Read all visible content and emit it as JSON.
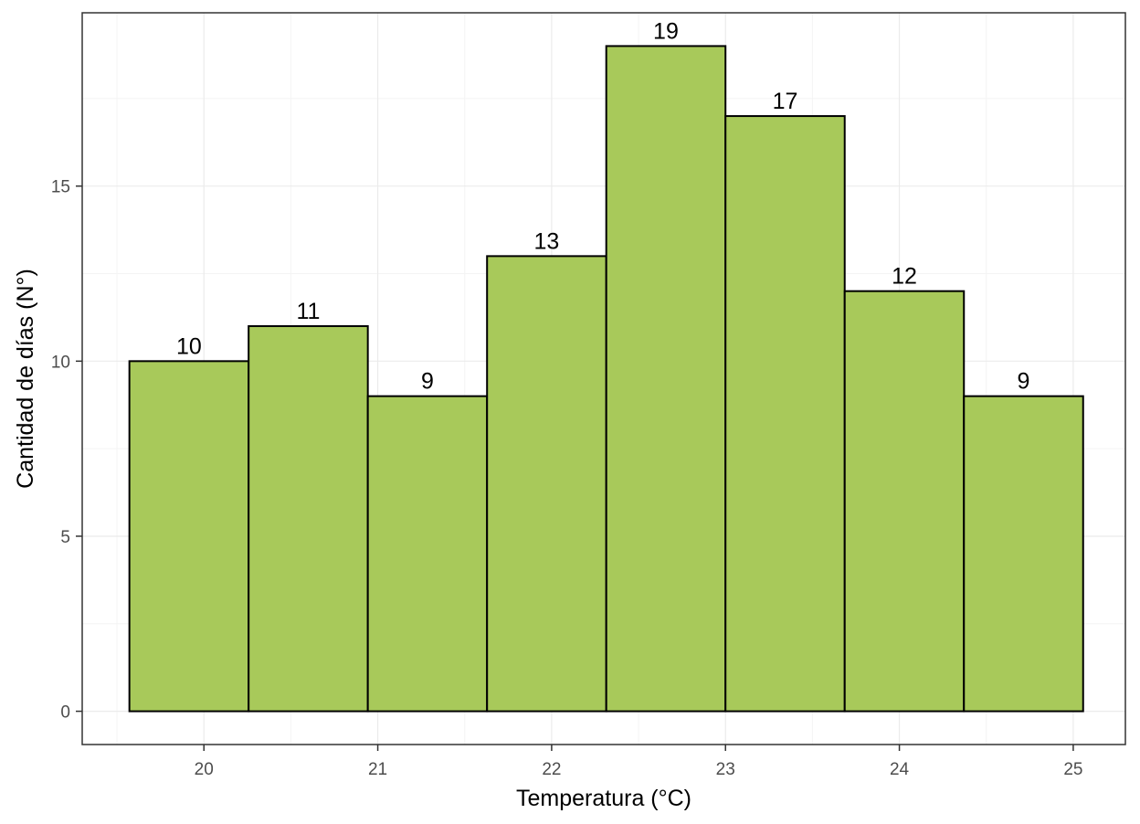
{
  "chart_data": {
    "type": "bar",
    "histogram": true,
    "bin_start": 19.5714,
    "bin_width": 0.6857,
    "values": [
      10,
      11,
      9,
      13,
      19,
      17,
      12,
      9
    ],
    "value_labels": [
      "10",
      "11",
      "9",
      "13",
      "19",
      "17",
      "12",
      "9"
    ],
    "title": "",
    "xlabel": "Temperatura (°C)",
    "ylabel": "Cantidad de días (N°)",
    "xlim": [
      19.3,
      25.3
    ],
    "ylim": [
      -0.95,
      19.95
    ],
    "x_ticks": [
      20,
      21,
      22,
      23,
      24,
      25
    ],
    "x_tick_labels": [
      "20",
      "21",
      "22",
      "23",
      "24",
      "25"
    ],
    "y_ticks": [
      0,
      5,
      10,
      15
    ],
    "y_tick_labels": [
      "0",
      "5",
      "10",
      "15"
    ],
    "grid": true,
    "legend": "none",
    "colors": {
      "bar_fill": "#A8C95A",
      "bar_stroke": "#000000",
      "grid_major": "#EBEBEB",
      "grid_minor": "#F4F4F4",
      "panel_border": "#333333"
    }
  }
}
